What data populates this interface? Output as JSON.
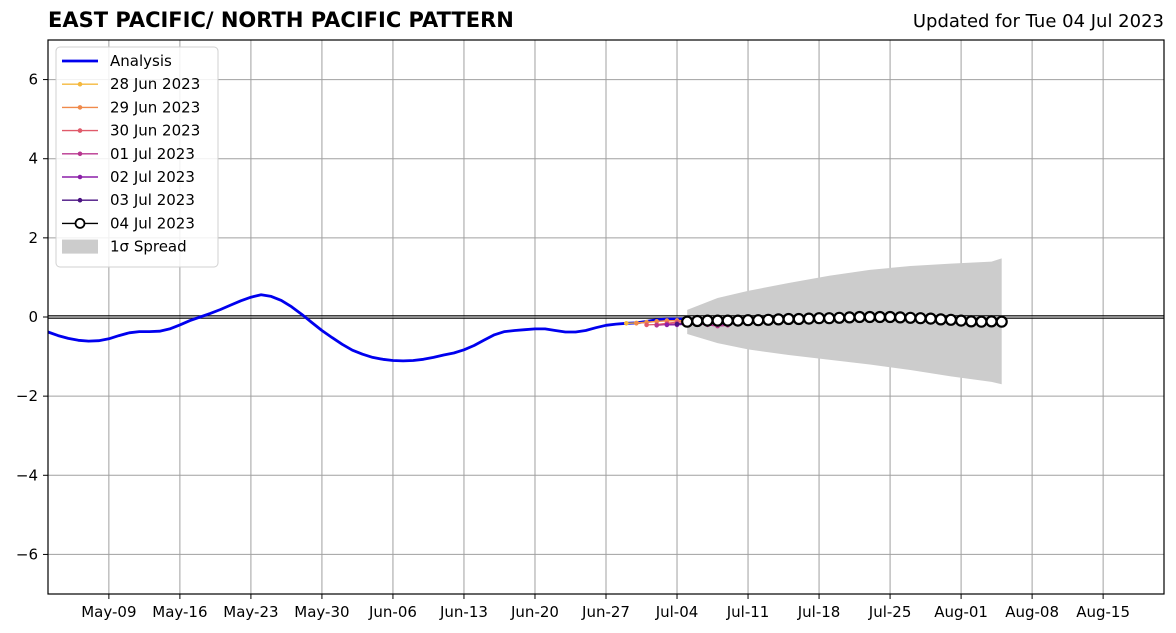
{
  "header": {
    "title": "EAST PACIFIC/ NORTH PACIFIC PATTERN",
    "updated": "Updated for Tue 04 Jul 2023"
  },
  "chart_data": {
    "type": "line",
    "title": "EAST PACIFIC/ NORTH PACIFIC PATTERN",
    "subtitle": "Updated for Tue 04 Jul 2023",
    "xlabel": "",
    "ylabel": "",
    "x_range": [
      "2023-05-03",
      "2023-08-21"
    ],
    "ylim": [
      -7,
      7
    ],
    "y_ticks": [
      -6,
      -4,
      -2,
      0,
      2,
      4,
      6
    ],
    "y_tick_labels": [
      "−6",
      "−4",
      "−2",
      "0",
      "2",
      "4",
      "6"
    ],
    "x_ticks": [
      "2023-05-09",
      "2023-05-16",
      "2023-05-23",
      "2023-05-30",
      "2023-06-06",
      "2023-06-13",
      "2023-06-20",
      "2023-06-27",
      "2023-07-04",
      "2023-07-11",
      "2023-07-18",
      "2023-07-25",
      "2023-08-01",
      "2023-08-08",
      "2023-08-15"
    ],
    "x_tick_labels": [
      "May-09",
      "May-16",
      "May-23",
      "May-30",
      "Jun-06",
      "Jun-13",
      "Jun-20",
      "Jun-27",
      "Jul-04",
      "Jul-11",
      "Jul-18",
      "Jul-25",
      "Aug-01",
      "Aug-08",
      "Aug-15"
    ],
    "grid": true,
    "legend_position": "top-left",
    "zero_line": 0,
    "series": [
      {
        "name": "Analysis",
        "color": "#0000ee",
        "start": "2023-05-03",
        "values": [
          -0.38,
          -0.47,
          -0.54,
          -0.59,
          -0.61,
          -0.6,
          -0.55,
          -0.47,
          -0.4,
          -0.37,
          -0.37,
          -0.36,
          -0.3,
          -0.2,
          -0.09,
          0.0,
          0.09,
          0.19,
          0.3,
          0.41,
          0.5,
          0.56,
          0.52,
          0.42,
          0.26,
          0.07,
          -0.14,
          -0.34,
          -0.52,
          -0.69,
          -0.84,
          -0.94,
          -1.02,
          -1.07,
          -1.1,
          -1.11,
          -1.1,
          -1.07,
          -1.02,
          -0.96,
          -0.91,
          -0.83,
          -0.72,
          -0.58,
          -0.45,
          -0.37,
          -0.34,
          -0.32,
          -0.3,
          -0.3,
          -0.34,
          -0.38,
          -0.38,
          -0.34,
          -0.27,
          -0.21,
          -0.18,
          -0.16,
          -0.15,
          -0.11,
          -0.07,
          -0.05,
          -0.05,
          -0.05,
          -0.06,
          -0.07,
          -0.08,
          -0.08
        ]
      },
      {
        "name": "28 Jun 2023",
        "color": "#f5b83d",
        "start": "2023-06-29",
        "values": [
          -0.16,
          -0.15,
          -0.13,
          -0.11,
          -0.1,
          -0.09,
          -0.09
        ]
      },
      {
        "name": "29 Jun 2023",
        "color": "#f08a4b",
        "start": "2023-06-30",
        "values": [
          -0.16,
          -0.14,
          -0.11,
          -0.09,
          -0.09,
          -0.1,
          -0.12
        ]
      },
      {
        "name": "30 Jun 2023",
        "color": "#e05a6a",
        "start": "2023-07-01",
        "values": [
          -0.2,
          -0.19,
          -0.16,
          -0.13,
          -0.12,
          -0.13,
          -0.16
        ]
      },
      {
        "name": "01 Jul 2023",
        "color": "#b8368f",
        "start": "2023-07-02",
        "values": [
          -0.21,
          -0.19,
          -0.17,
          -0.16,
          -0.17,
          -0.2,
          -0.23,
          -0.21
        ]
      },
      {
        "name": "02 Jul 2023",
        "color": "#8b1fa8",
        "start": "2023-07-03",
        "values": [
          -0.2,
          -0.2,
          -0.18,
          -0.17,
          -0.17,
          -0.19,
          -0.18,
          -0.16,
          -0.15,
          -0.14,
          -0.13
        ]
      },
      {
        "name": "03 Jul 2023",
        "color": "#4a1282",
        "start": "2023-07-04",
        "values": [
          -0.18,
          -0.17,
          -0.16,
          -0.15,
          -0.15,
          -0.15,
          -0.15,
          -0.14,
          -0.13,
          -0.12
        ]
      },
      {
        "name": "04 Jul 2023",
        "color": "#000000",
        "start": "2023-07-05",
        "values": [
          -0.12,
          -0.1,
          -0.09,
          -0.09,
          -0.09,
          -0.09,
          -0.08,
          -0.08,
          -0.07,
          -0.06,
          -0.05,
          -0.05,
          -0.04,
          -0.03,
          -0.03,
          -0.02,
          -0.01,
          0.0,
          0.0,
          0.0,
          0.0,
          -0.01,
          -0.02,
          -0.03,
          -0.04,
          -0.06,
          -0.07,
          -0.09,
          -0.11,
          -0.12,
          -0.11,
          -0.12
        ]
      }
    ],
    "spread": {
      "name": "1σ Spread",
      "color": "#cccccc",
      "x": [
        "2023-07-05",
        "2023-07-08",
        "2023-07-11",
        "2023-07-15",
        "2023-07-19",
        "2023-07-23",
        "2023-07-27",
        "2023-07-31",
        "2023-08-04",
        "2023-08-05"
      ],
      "upper": [
        0.18,
        0.48,
        0.66,
        0.86,
        1.04,
        1.19,
        1.29,
        1.35,
        1.4,
        1.48
      ],
      "lower": [
        -0.43,
        -0.66,
        -0.82,
        -0.96,
        -1.08,
        -1.2,
        -1.34,
        -1.5,
        -1.64,
        -1.7
      ]
    },
    "legend": [
      "Analysis",
      "28 Jun 2023",
      "29 Jun 2023",
      "30 Jun 2023",
      "01 Jul 2023",
      "02 Jul 2023",
      "03 Jul 2023",
      "04 Jul 2023",
      "1σ Spread"
    ]
  }
}
